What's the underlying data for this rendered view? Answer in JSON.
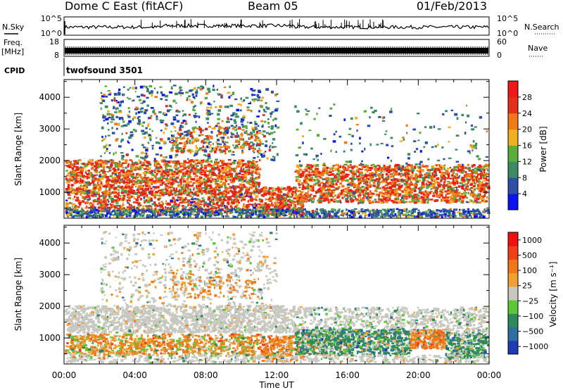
{
  "header": {
    "station": "Dome C East (fitACF)",
    "beam": "Beam 05",
    "date": "01/Feb/2013"
  },
  "sky_panel": {
    "label": "N.Sky",
    "right_label": "N.Search",
    "left_ticks": [
      "10^5",
      "10^0"
    ],
    "right_ticks": [
      "10^5",
      "10^0"
    ]
  },
  "freq_panel": {
    "label_line1": "Freq.",
    "label_line2": "[MHz]",
    "right_label": "Nave",
    "left_ticks": [
      "18",
      "8"
    ],
    "right_ticks": [
      "60",
      "0"
    ]
  },
  "cpid_panel": {
    "label": "CPID",
    "value": "twofsound 3501"
  },
  "x_axis": {
    "label": "Time UT",
    "ticks": [
      "00:00",
      "04:00",
      "08:00",
      "12:00",
      "16:00",
      "20:00",
      "00:00"
    ],
    "range_hours": [
      0,
      24
    ]
  },
  "chart_data": [
    {
      "type": "heatmap",
      "name": "power",
      "ylabel": "Slant Range [km]",
      "y_ticks": [
        "1000",
        "2000",
        "3000",
        "4000"
      ],
      "ylim": [
        180,
        4560
      ],
      "colorbar_label": "Power [dB]",
      "colorbar_ticks": [
        "28",
        "24",
        "20",
        "16",
        "12",
        "8",
        "4"
      ],
      "colors": [
        "#0a14f0",
        "#2d4fa6",
        "#3d8a63",
        "#5cac3c",
        "#f0b020",
        "#f07a18",
        "#e43018",
        "#f01818"
      ]
    },
    {
      "type": "heatmap",
      "name": "velocity",
      "ylabel": "Slant Range [km]",
      "y_ticks": [
        "1000",
        "2000",
        "3000",
        "4000"
      ],
      "ylim": [
        180,
        4560
      ],
      "colorbar_label": "Velocity [m s⁻¹]",
      "colorbar_ticks": [
        "1000",
        "500",
        "100",
        "25",
        "−25",
        "−100",
        "−500",
        "−1000"
      ],
      "colors": [
        "#1e3cb4",
        "#2e6ea0",
        "#2e8a5a",
        "#5cc838",
        "#c8c8c0",
        "#f0a030",
        "#f07818",
        "#f04018",
        "#f01010"
      ]
    }
  ]
}
